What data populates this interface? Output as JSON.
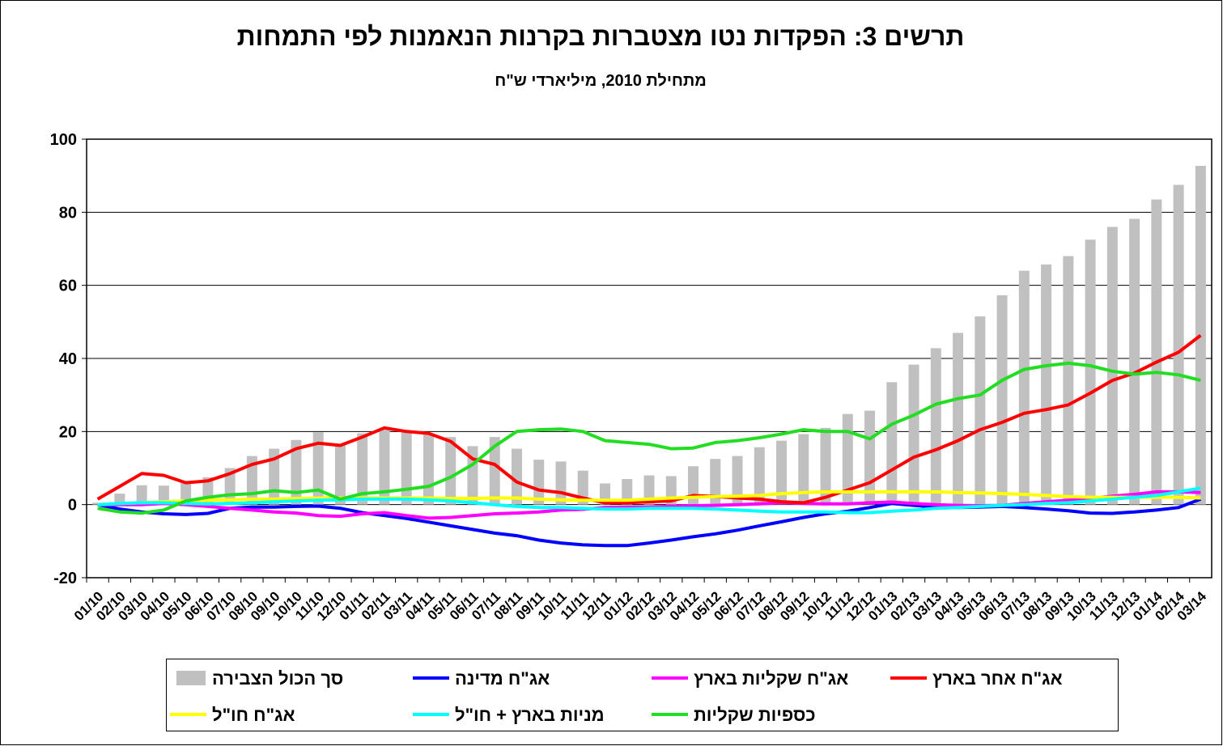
{
  "chart_data": {
    "type": "bar",
    "title": "תרשים 3: הפקדות נטו מצטברות בקרנות הנאמנות לפי התמחות",
    "subtitle": "מתחילת 2010,  מיליארדי ש\"ח",
    "categories": [
      "01/10",
      "02/10",
      "03/10",
      "04/10",
      "05/10",
      "06/10",
      "07/10",
      "08/10",
      "09/10",
      "10/10",
      "11/10",
      "12/10",
      "01/11",
      "02/11",
      "03/11",
      "04/11",
      "05/11",
      "06/11",
      "07/11",
      "08/11",
      "09/11",
      "10/11",
      "11/11",
      "12/11",
      "01/12",
      "02/12",
      "03/12",
      "04/12",
      "05/12",
      "06/12",
      "07/12",
      "08/12",
      "09/12",
      "10/12",
      "11/12",
      "12/12",
      "01/13",
      "02/13",
      "03/13",
      "04/13",
      "05/13",
      "06/13",
      "07/13",
      "08/13",
      "09/13",
      "10/13",
      "11/13",
      "12/13",
      "01/14",
      "02/14",
      "03/14"
    ],
    "ylim": [
      -20,
      100
    ],
    "yticks": [
      -20,
      0,
      20,
      40,
      60,
      80,
      100
    ],
    "grid": true,
    "series": [
      {
        "name": "סך הכול הצבירה",
        "type": "bar",
        "color": "#c0c0c0",
        "values": [
          0.5,
          3,
          5.3,
          5.2,
          6,
          7.5,
          10,
          13.3,
          15.3,
          17.7,
          19.8,
          16.5,
          19.5,
          21,
          20,
          19.5,
          18.5,
          16,
          18.5,
          15.3,
          12.3,
          11.8,
          9.3,
          5.8,
          7,
          8,
          7.8,
          10.5,
          12.5,
          13.3,
          15.7,
          17.5,
          19.3,
          21,
          24.8,
          25.7,
          33.5,
          38.3,
          42.8,
          47,
          51.5,
          57.3,
          64,
          65.7,
          68,
          72.5,
          76,
          78.2,
          83.5,
          87.5,
          92.7
        ]
      },
      {
        "name": "אג\"ח מדינה",
        "type": "line",
        "color": "#0000ff",
        "values": [
          0,
          -1.2,
          -2,
          -2.5,
          -2.7,
          -2.4,
          -1,
          -0.7,
          -0.7,
          -0.5,
          -0.4,
          -1,
          -2.2,
          -3,
          -3.8,
          -4.8,
          -5.8,
          -6.8,
          -7.8,
          -8.5,
          -9.7,
          -10.5,
          -11,
          -11.2,
          -11.2,
          -10.5,
          -9.7,
          -8.8,
          -8,
          -7,
          -5.8,
          -4.7,
          -3.5,
          -2.5,
          -1.8,
          -0.8,
          0.3,
          -0.2,
          -0.7,
          -0.8,
          -0.7,
          -0.5,
          -0.8,
          -1.2,
          -1.7,
          -2.3,
          -2.4,
          -2,
          -1.5,
          -0.8,
          1.5
        ]
      },
      {
        "name": "אג\"ח שקליות בארץ",
        "type": "line",
        "color": "#ff00ff",
        "values": [
          0,
          0,
          0,
          0.3,
          0,
          -0.5,
          -1,
          -1.5,
          -2,
          -2.3,
          -3,
          -3.2,
          -2.5,
          -2.2,
          -3,
          -3.7,
          -3.5,
          -3,
          -2.5,
          -2.3,
          -2,
          -1.5,
          -1.3,
          -0.8,
          -0.7,
          -0.7,
          -0.5,
          -0.3,
          -0.2,
          0,
          0.2,
          0.5,
          0.3,
          0.2,
          0.2,
          0.5,
          0.7,
          0.3,
          0,
          -0.2,
          -0.3,
          -0.2,
          0.3,
          0.8,
          1.2,
          1.7,
          2.3,
          2.8,
          3.5,
          3.5,
          3.3
        ]
      },
      {
        "name": "אג\"ח אחר בארץ",
        "type": "line",
        "color": "#ff0000",
        "values": [
          1.5,
          5,
          8.5,
          8,
          6,
          6.5,
          8.5,
          11,
          12.5,
          15.3,
          16.8,
          16.2,
          18.5,
          21,
          20,
          19.5,
          17.3,
          12.5,
          11,
          6.2,
          4,
          3.3,
          1.8,
          0.5,
          0.5,
          0.8,
          1,
          2.5,
          2.2,
          1.8,
          1.5,
          0.8,
          0.5,
          2,
          4,
          6,
          9.5,
          13,
          15,
          17.5,
          20.5,
          22.5,
          25,
          26,
          27.3,
          30.5,
          34,
          36,
          39,
          41.7,
          46.3
        ]
      },
      {
        "name": "אג\"ח חו\"ל",
        "type": "line",
        "color": "#ffff00",
        "values": [
          0,
          0.3,
          0.5,
          0.8,
          1,
          1.2,
          1.3,
          1.5,
          1.5,
          1.7,
          1.8,
          1.8,
          1.8,
          1.8,
          1.8,
          1.8,
          1.7,
          1.7,
          1.8,
          1.8,
          1.5,
          1.3,
          1.2,
          1.2,
          1.2,
          1.5,
          1.8,
          2,
          2.2,
          2.3,
          2.5,
          3,
          3.3,
          3.5,
          3.5,
          3.5,
          3.5,
          3.5,
          3.5,
          3.3,
          3.2,
          3,
          2.8,
          2.5,
          2.2,
          2,
          2,
          2,
          2,
          2,
          1.8
        ]
      },
      {
        "name": "מניות בארץ + חו\"ל",
        "type": "line",
        "color": "#00ffff",
        "values": [
          0,
          0.3,
          0.5,
          0.5,
          0.3,
          0.2,
          0.3,
          0.5,
          0.8,
          1,
          1.2,
          1.3,
          1.5,
          1.5,
          1.5,
          1.3,
          1,
          0.5,
          0,
          -0.5,
          -0.8,
          -0.8,
          -1,
          -1.2,
          -1.2,
          -1,
          -1,
          -1,
          -1.2,
          -1.5,
          -1.8,
          -2,
          -2,
          -2,
          -2.2,
          -2.2,
          -1.8,
          -1.5,
          -1,
          -0.8,
          -0.5,
          -0.2,
          0,
          0.3,
          0.5,
          1,
          1.5,
          2,
          2.5,
          3.5,
          4.5
        ]
      },
      {
        "name": "כספיות שקליות",
        "type": "line",
        "color": "#22dd22",
        "values": [
          -1,
          -2,
          -2.3,
          -1.5,
          1,
          2,
          2.7,
          3,
          3.8,
          3.3,
          4,
          1.5,
          3,
          3.5,
          4.2,
          5,
          7.5,
          11,
          16,
          20,
          20.5,
          20.7,
          20,
          17.5,
          17,
          16.5,
          15.3,
          15.5,
          17,
          17.5,
          18.3,
          19.3,
          20.5,
          20,
          20,
          18,
          22,
          24.5,
          27.5,
          29,
          30,
          34,
          37,
          38,
          38.7,
          38,
          36.5,
          35.7,
          36.2,
          35.5,
          34
        ]
      }
    ]
  }
}
